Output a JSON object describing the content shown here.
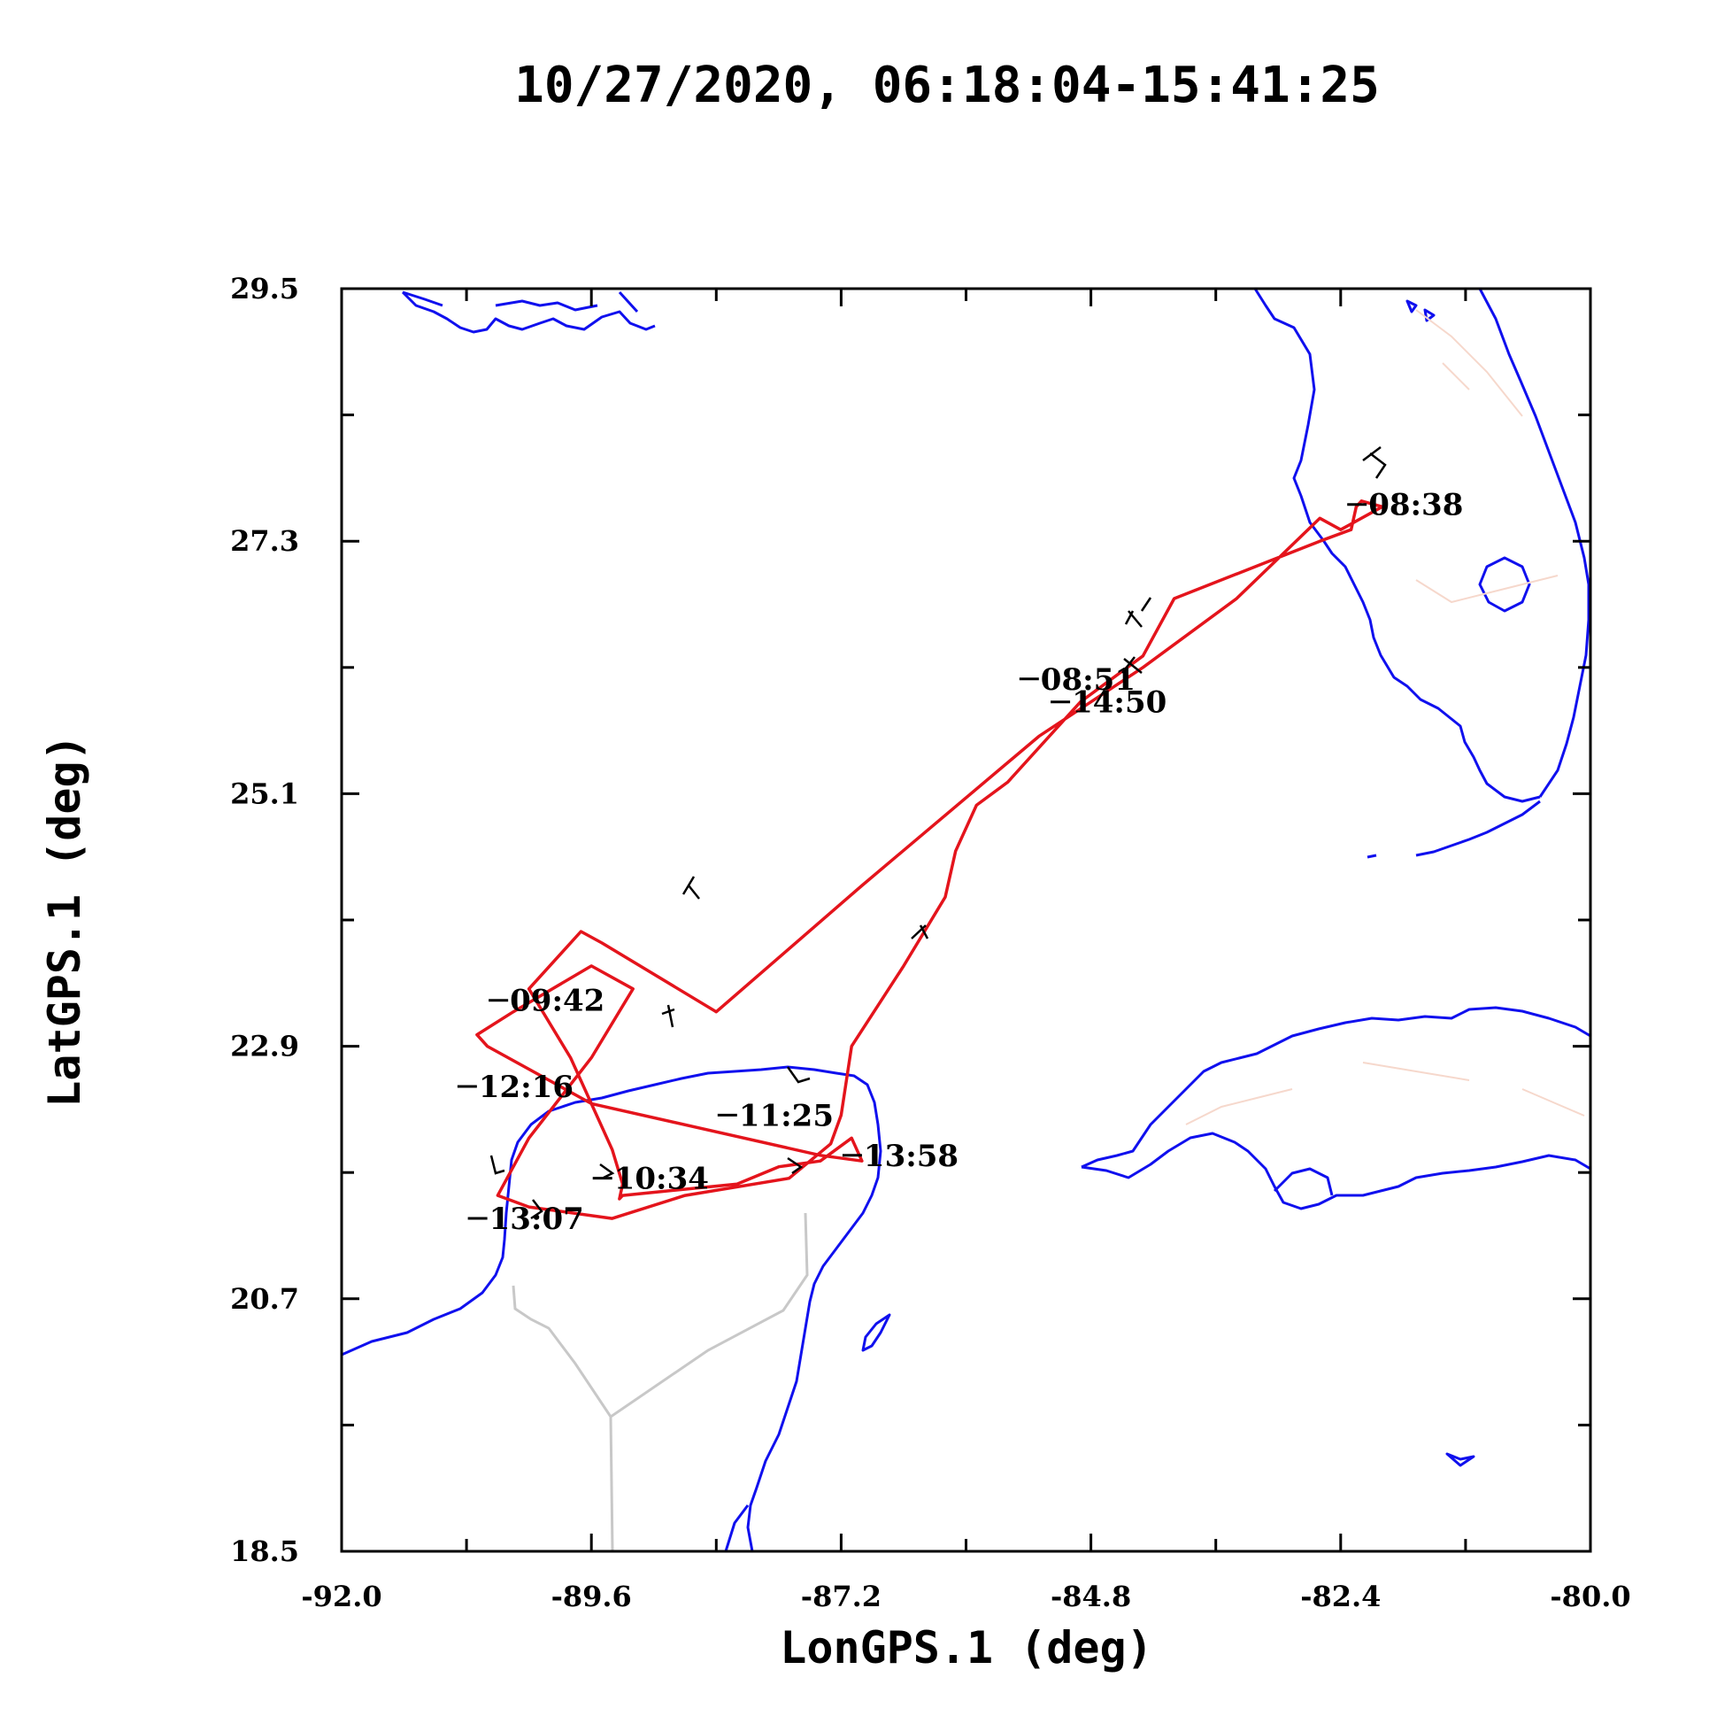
{
  "chart_data": {
    "type": "line",
    "title": "10/27/2020, 06:18:04-15:41:25",
    "xlabel": "LonGPS.1 (deg)",
    "ylabel": "LatGPS.1 (deg)",
    "xlim": [
      -92.0,
      -80.0
    ],
    "ylim": [
      18.5,
      29.5
    ],
    "xticks": [
      -92.0,
      -89.6,
      -87.2,
      -84.8,
      -82.4,
      -80.0
    ],
    "xticks_minor": [
      -90.8,
      -88.4,
      -86.0,
      -83.6,
      -81.2
    ],
    "yticks": [
      18.5,
      20.7,
      22.9,
      25.1,
      27.3,
      29.5
    ],
    "yticks_minor": [
      19.6,
      21.8,
      24.0,
      26.2,
      28.4
    ],
    "grid": false,
    "colors": {
      "track": "#e4141c",
      "coastline": "#1010ee",
      "border": "#c8c8c8",
      "state_border": "#f6d8cc",
      "wind_barb": "#000000"
    },
    "series": [
      {
        "lon": [
          -82.0,
          -82.4,
          -82.6,
          -83.4,
          -84.3,
          -85.3,
          -87.0,
          -88.4,
          -89.5,
          -89.7,
          -90.2,
          -89.8,
          -89.4,
          -89.3,
          -89.33,
          -89.3,
          -88.2,
          -87.8,
          -87.4,
          -87.1,
          -87.0,
          -87.4,
          -89.6,
          -90.6,
          -90.7,
          -90.35,
          -89.6,
          -89.2,
          -89.6,
          -90.2,
          -90.5,
          -90.2,
          -89.4,
          -88.7,
          -87.7,
          -87.3,
          -87.2,
          -87.1,
          -86.6,
          -86.2,
          -86.1,
          -85.9,
          -85.6,
          -84.9,
          -84.3,
          -84.0,
          -82.6,
          -82.3,
          -82.25,
          -82.2,
          -82.0
        ],
        "lat": [
          27.6,
          27.4,
          27.5,
          26.8,
          26.2,
          25.6,
          24.3,
          23.2,
          23.8,
          23.9,
          23.4,
          22.8,
          22.0,
          21.7,
          21.57,
          21.6,
          21.7,
          21.85,
          21.9,
          22.1,
          21.9,
          21.95,
          22.4,
          22.9,
          23.0,
          23.2,
          23.6,
          23.4,
          22.8,
          22.1,
          21.6,
          21.5,
          21.4,
          21.6,
          21.75,
          22.05,
          22.3,
          22.9,
          23.6,
          24.2,
          24.6,
          25.0,
          25.2,
          25.9,
          26.3,
          26.8,
          27.3,
          27.4,
          27.6,
          27.65,
          27.6
        ]
      }
    ],
    "annotations": [
      {
        "text": "08:38",
        "lon": -82.15,
        "lat": 27.62
      },
      {
        "text": "08:51",
        "lon": -85.3,
        "lat": 26.1
      },
      {
        "text": "14:50",
        "lon": -85.0,
        "lat": 25.9
      },
      {
        "text": "09:42",
        "lon": -90.4,
        "lat": 23.3
      },
      {
        "text": "12:16",
        "lon": -90.7,
        "lat": 22.55
      },
      {
        "text": "11:25",
        "lon": -88.2,
        "lat": 22.3
      },
      {
        "text": "13:58",
        "lon": -87.0,
        "lat": 21.95
      },
      {
        "text": "10:34",
        "lon": -89.4,
        "lat": 21.75
      },
      {
        "text": "13:07",
        "lon": -90.6,
        "lat": 21.4
      }
    ]
  }
}
